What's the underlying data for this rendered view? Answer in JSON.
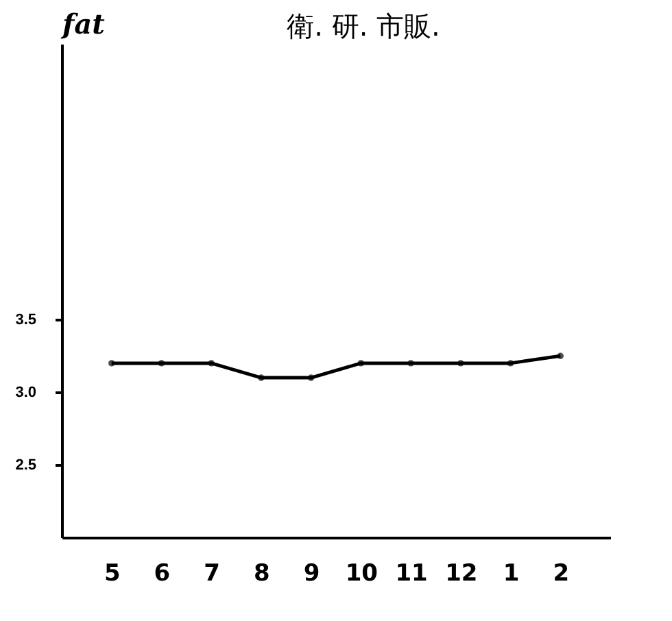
{
  "chart_data": {
    "type": "line",
    "title": "衛. 研. 市販.",
    "ylabel": "fat",
    "categories": [
      "5",
      "6",
      "7",
      "8",
      "9",
      "10",
      "11",
      "12",
      "1",
      "2"
    ],
    "series": [
      {
        "color": "#000000",
        "values": [
          3.2,
          3.2,
          3.2,
          3.1,
          3.1,
          3.2,
          3.2,
          3.2,
          3.2,
          3.25
        ]
      }
    ],
    "ylim": [
      2.0,
      5.4
    ],
    "yticks": [
      {
        "value": 2.5,
        "label": "2.5"
      },
      {
        "value": 3.0,
        "label": "3.0"
      },
      {
        "value": 3.5,
        "label": "3.5"
      }
    ],
    "grid": false,
    "marker": "circle",
    "line_style": "solid"
  }
}
